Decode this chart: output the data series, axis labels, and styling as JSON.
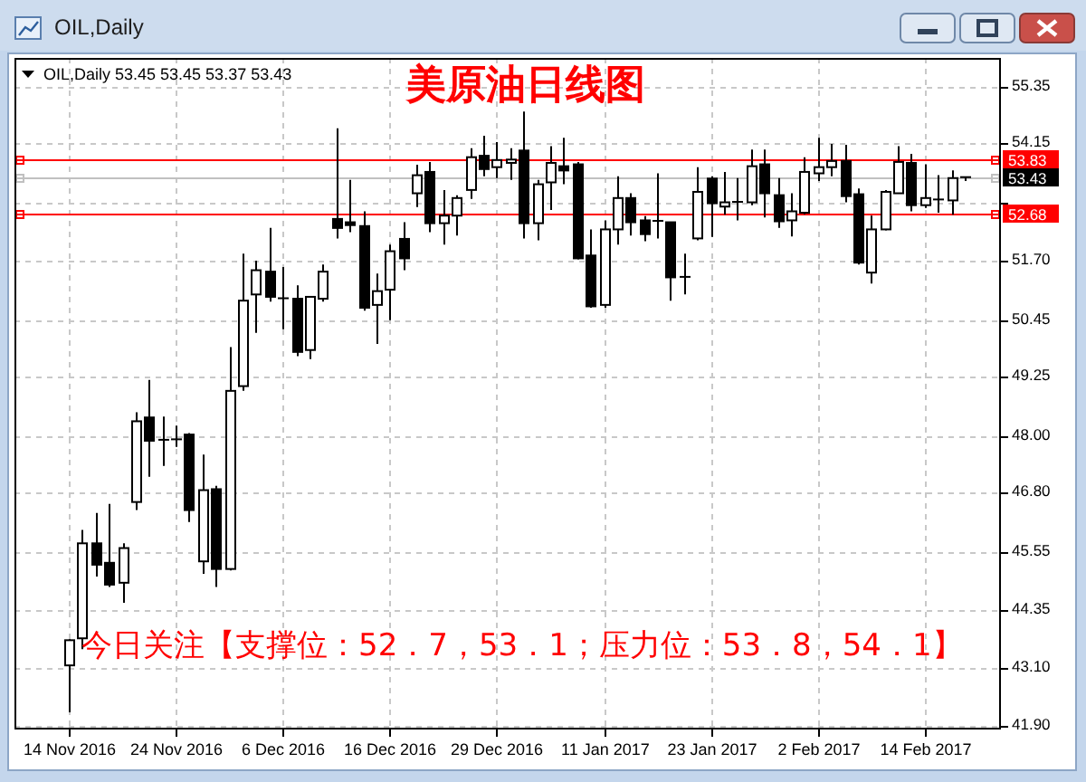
{
  "chart_data": {
    "type": "candlestick",
    "title": "美原油日线图",
    "subtitle": "OIL,Daily 53.45 53.45 53.37 53.43",
    "annotations": [
      "OIL,Daily",
      "今日关注【支撑位：52．7，53．1；压力位：53．8，54．1】"
    ],
    "categories": [
      "14 Nov 2016",
      null,
      null,
      null,
      null,
      null,
      null,
      null,
      "24 Nov 2016",
      null,
      null,
      null,
      null,
      null,
      null,
      null,
      "6 Dec 2016",
      null,
      null,
      null,
      null,
      null,
      null,
      null,
      "16 Dec 2016",
      null,
      null,
      null,
      null,
      null,
      null,
      null,
      "29 Dec 2016",
      null,
      null,
      null,
      null,
      null,
      null,
      null,
      "11 Jan 2017",
      null,
      null,
      null,
      null,
      null,
      null,
      null,
      "23 Jan 2017",
      null,
      null,
      null,
      null,
      null,
      null,
      null,
      "2 Feb 2017",
      null,
      null,
      null,
      null,
      null,
      null,
      null,
      "14 Feb 2017",
      null,
      null,
      null
    ],
    "ohlc": [
      [
        43.17,
        43.72,
        42.18,
        43.7
      ],
      [
        43.74,
        46.02,
        43.51,
        45.74
      ],
      [
        45.74,
        46.38,
        45.04,
        45.29
      ],
      [
        45.33,
        46.57,
        44.82,
        44.87
      ],
      [
        44.91,
        45.74,
        44.49,
        45.64
      ],
      [
        46.61,
        48.5,
        46.44,
        48.31
      ],
      [
        48.39,
        49.18,
        47.14,
        47.9
      ],
      [
        47.92,
        48.41,
        47.37,
        47.9
      ],
      [
        47.92,
        48.22,
        47.77,
        47.93
      ],
      [
        48.03,
        48.06,
        46.19,
        46.44
      ],
      [
        45.36,
        47.61,
        45.1,
        46.86
      ],
      [
        46.88,
        46.95,
        44.82,
        45.2
      ],
      [
        45.2,
        49.87,
        45.17,
        48.95
      ],
      [
        49.05,
        51.84,
        48.95,
        50.85
      ],
      [
        50.98,
        51.69,
        50.17,
        51.49
      ],
      [
        51.46,
        52.38,
        50.83,
        50.93
      ],
      [
        50.89,
        51.56,
        50.25,
        50.9
      ],
      [
        50.89,
        51.17,
        49.68,
        49.77
      ],
      [
        49.81,
        50.93,
        49.62,
        50.93
      ],
      [
        50.89,
        51.61,
        50.83,
        51.46
      ],
      [
        52.57,
        54.48,
        52.16,
        52.38
      ],
      [
        52.5,
        53.39,
        52.29,
        52.44
      ],
      [
        52.42,
        52.73,
        50.64,
        50.7
      ],
      [
        50.76,
        51.42,
        49.94,
        51.05
      ],
      [
        51.08,
        52.03,
        50.44,
        51.89
      ],
      [
        52.15,
        52.5,
        51.49,
        51.74
      ],
      [
        53.11,
        53.71,
        52.82,
        53.49
      ],
      [
        53.56,
        53.77,
        52.29,
        52.48
      ],
      [
        52.48,
        53.18,
        52.03,
        52.64
      ],
      [
        52.64,
        53.07,
        52.22,
        53.01
      ],
      [
        53.18,
        54.06,
        52.99,
        53.87
      ],
      [
        53.9,
        54.32,
        53.47,
        53.62
      ],
      [
        53.66,
        54.19,
        53.43,
        53.81
      ],
      [
        53.75,
        54.06,
        53.39,
        53.82
      ],
      [
        54.01,
        54.83,
        52.16,
        52.48
      ],
      [
        52.48,
        53.39,
        52.12,
        53.3
      ],
      [
        53.34,
        54.1,
        52.76,
        53.75
      ],
      [
        53.68,
        54.28,
        53.3,
        53.59
      ],
      [
        53.72,
        53.77,
        51.72,
        51.74
      ],
      [
        51.8,
        52.35,
        50.7,
        50.73
      ],
      [
        50.76,
        52.54,
        50.7,
        52.35
      ],
      [
        52.35,
        53.47,
        52.03,
        53.01
      ],
      [
        53.01,
        53.11,
        52.22,
        52.5
      ],
      [
        52.54,
        52.63,
        52.1,
        52.25
      ],
      [
        52.5,
        53.53,
        52.16,
        52.53
      ],
      [
        52.5,
        52.5,
        50.85,
        51.34
      ],
      [
        51.34,
        51.84,
        50.98,
        51.35
      ],
      [
        52.16,
        53.66,
        52.12,
        53.14
      ],
      [
        53.42,
        53.47,
        52.19,
        52.9
      ],
      [
        52.83,
        53.56,
        52.66,
        52.92
      ],
      [
        52.93,
        53.43,
        52.54,
        52.92
      ],
      [
        52.92,
        54.03,
        52.86,
        53.68
      ],
      [
        53.72,
        54.03,
        52.6,
        53.11
      ],
      [
        53.07,
        53.43,
        52.38,
        52.52
      ],
      [
        52.54,
        53.11,
        52.2,
        52.73
      ],
      [
        52.7,
        53.87,
        52.67,
        53.56
      ],
      [
        53.53,
        54.28,
        53.37,
        53.66
      ],
      [
        53.66,
        54.15,
        53.47,
        53.79
      ],
      [
        53.79,
        54.13,
        52.92,
        53.05
      ],
      [
        53.09,
        53.21,
        51.61,
        51.65
      ],
      [
        51.44,
        52.64,
        51.21,
        52.35
      ],
      [
        52.35,
        53.18,
        52.33,
        53.14
      ],
      [
        53.11,
        54.1,
        53.11,
        53.77
      ],
      [
        53.75,
        53.94,
        52.73,
        52.86
      ],
      [
        52.86,
        53.72,
        52.8,
        53.01
      ],
      [
        52.96,
        53.49,
        52.7,
        52.98
      ],
      [
        52.96,
        53.59,
        52.66,
        53.43
      ],
      [
        53.45,
        53.45,
        53.37,
        53.43
      ]
    ],
    "color": "#000000",
    "ylim": [
      41.82,
      55.96
    ],
    "yticks": [
      55.35,
      54.15,
      {
        "value": 52.9,
        "label": null
      },
      {
        "value": 51.7,
        "label": "51.70"
      },
      50.45,
      49.25,
      {
        "value": 48,
        "label": "48.00"
      },
      {
        "value": 46.8,
        "label": "46.80"
      },
      45.55,
      44.35,
      {
        "value": 43.1,
        "label": "43.10"
      },
      {
        "value": 41.9,
        "label": "41.90"
      }
    ],
    "ref_lines": [
      {
        "axis": "y",
        "value": 53.83,
        "label": "53.83",
        "color": "#ff0000"
      },
      {
        "axis": "y",
        "value": 52.68,
        "label": "52.68",
        "color": "#ff0000"
      },
      {
        "axis": "y",
        "value": 53.43,
        "label": "53.43",
        "color": "#c0c0c0"
      }
    ],
    "grid": true
  }
}
